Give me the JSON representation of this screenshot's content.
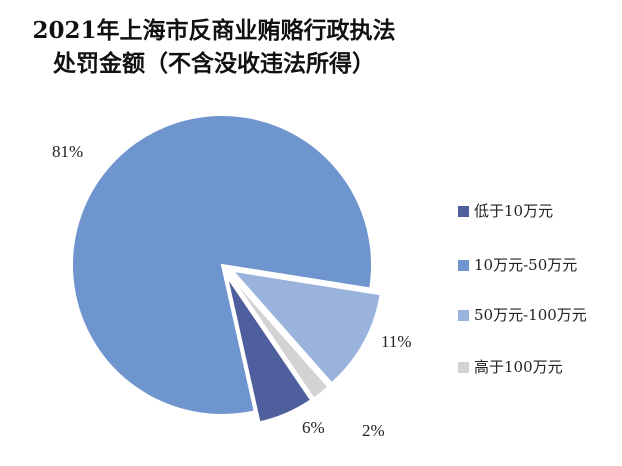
{
  "title_line1": "2021年上海市反商业贿赂行政执法",
  "title_line2": "处罚金额（不含没收违法所得）",
  "chart_data": {
    "type": "pie",
    "title": "2021年上海市反商业贿赂行政执法处罚金额（不含没收违法所得）",
    "legend_placement": "right",
    "slices": [
      {
        "label": "低于10万元",
        "value": 6,
        "display": "6%",
        "color": "#4f5f9e",
        "exploded": true
      },
      {
        "label": "10万元-50万元",
        "value": 81,
        "display": "81%",
        "color": "#6f95cf",
        "exploded": false
      },
      {
        "label": "50万元-100万元",
        "value": 11,
        "display": "11%",
        "color": "#9ab3dd",
        "exploded": true
      },
      {
        "label": "高于100万元",
        "value": 2,
        "display": "2%",
        "color": "#d3d3d3",
        "exploded": true
      }
    ]
  }
}
